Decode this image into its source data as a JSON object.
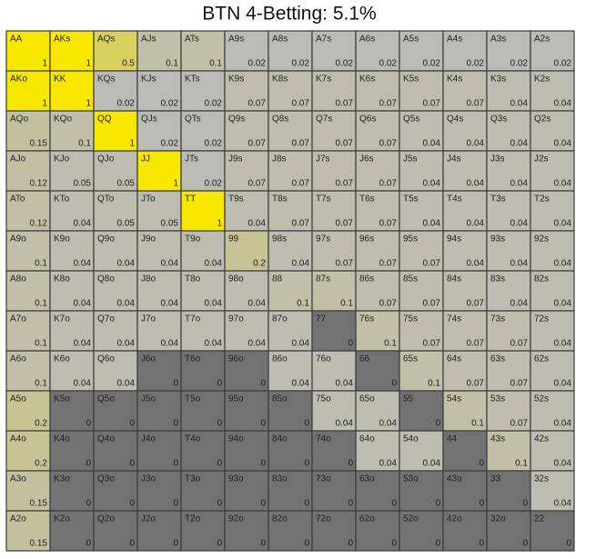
{
  "title": "BTN 4-Betting: 5.1%",
  "color_scale": {
    "zero": "#727272",
    "low": "#bababa",
    "full": "#f8e800",
    "border": "#3a3a3a"
  },
  "cells": [
    [
      [
        "AA",
        1
      ],
      [
        "AKs",
        1
      ],
      [
        "AQs",
        0.5
      ],
      [
        "AJs",
        0.1
      ],
      [
        "ATs",
        0.1
      ],
      [
        "A9s",
        0.02
      ],
      [
        "A8s",
        0.02
      ],
      [
        "A7s",
        0.02
      ],
      [
        "A6s",
        0.02
      ],
      [
        "A5s",
        0.02
      ],
      [
        "A4s",
        0.02
      ],
      [
        "A3s",
        0.02
      ],
      [
        "A2s",
        0.02
      ]
    ],
    [
      [
        "AKo",
        1
      ],
      [
        "KK",
        1
      ],
      [
        "KQs",
        0.02
      ],
      [
        "KJs",
        0.02
      ],
      [
        "KTs",
        0.02
      ],
      [
        "K9s",
        0.07
      ],
      [
        "K8s",
        0.07
      ],
      [
        "K7s",
        0.07
      ],
      [
        "K6s",
        0.07
      ],
      [
        "K5s",
        0.07
      ],
      [
        "K4s",
        0.07
      ],
      [
        "K3s",
        0.04
      ],
      [
        "K2s",
        0.04
      ]
    ],
    [
      [
        "AQo",
        0.15
      ],
      [
        "KQo",
        0.1
      ],
      [
        "QQ",
        1
      ],
      [
        "QJs",
        0.02
      ],
      [
        "QTs",
        0.02
      ],
      [
        "Q9s",
        0.07
      ],
      [
        "Q8s",
        0.07
      ],
      [
        "Q7s",
        0.07
      ],
      [
        "Q6s",
        0.07
      ],
      [
        "Q5s",
        0.04
      ],
      [
        "Q4s",
        0.04
      ],
      [
        "Q3s",
        0.04
      ],
      [
        "Q2s",
        0.04
      ]
    ],
    [
      [
        "AJo",
        0.12
      ],
      [
        "KJo",
        0.05
      ],
      [
        "QJo",
        0.05
      ],
      [
        "JJ",
        1
      ],
      [
        "JTs",
        0.02
      ],
      [
        "J9s",
        0.07
      ],
      [
        "J8s",
        0.07
      ],
      [
        "J7s",
        0.07
      ],
      [
        "J6s",
        0.07
      ],
      [
        "J5s",
        0.04
      ],
      [
        "J4s",
        0.04
      ],
      [
        "J3s",
        0.04
      ],
      [
        "J2s",
        0.04
      ]
    ],
    [
      [
        "ATo",
        0.12
      ],
      [
        "KTo",
        0.04
      ],
      [
        "QTo",
        0.05
      ],
      [
        "JTo",
        0.05
      ],
      [
        "TT",
        1
      ],
      [
        "T9s",
        0.04
      ],
      [
        "T8s",
        0.07
      ],
      [
        "T7s",
        0.07
      ],
      [
        "T6s",
        0.07
      ],
      [
        "T5s",
        0.04
      ],
      [
        "T4s",
        0.04
      ],
      [
        "T3s",
        0.04
      ],
      [
        "T2s",
        0.04
      ]
    ],
    [
      [
        "A9o",
        0.1
      ],
      [
        "K9o",
        0.04
      ],
      [
        "Q9o",
        0.04
      ],
      [
        "J9o",
        0.04
      ],
      [
        "T9o",
        0.04
      ],
      [
        "99",
        0.2
      ],
      [
        "98s",
        0.04
      ],
      [
        "97s",
        0.07
      ],
      [
        "96s",
        0.07
      ],
      [
        "95s",
        0.07
      ],
      [
        "94s",
        0.04
      ],
      [
        "93s",
        0.04
      ],
      [
        "92s",
        0.04
      ]
    ],
    [
      [
        "A8o",
        0.1
      ],
      [
        "K8o",
        0.04
      ],
      [
        "Q8o",
        0.04
      ],
      [
        "J8o",
        0.04
      ],
      [
        "T8o",
        0.04
      ],
      [
        "98o",
        0.04
      ],
      [
        "88",
        0.1
      ],
      [
        "87s",
        0.1
      ],
      [
        "86s",
        0.07
      ],
      [
        "85s",
        0.07
      ],
      [
        "84s",
        0.07
      ],
      [
        "83s",
        0.04
      ],
      [
        "82s",
        0.04
      ]
    ],
    [
      [
        "A7o",
        0.1
      ],
      [
        "K7o",
        0.04
      ],
      [
        "Q7o",
        0.04
      ],
      [
        "J7o",
        0.04
      ],
      [
        "T7o",
        0.04
      ],
      [
        "97o",
        0.04
      ],
      [
        "87o",
        0.04
      ],
      [
        "77",
        0
      ],
      [
        "76s",
        0.1
      ],
      [
        "75s",
        0.07
      ],
      [
        "74s",
        0.07
      ],
      [
        "73s",
        0.07
      ],
      [
        "72s",
        0.04
      ]
    ],
    [
      [
        "A6o",
        0.1
      ],
      [
        "K6o",
        0.04
      ],
      [
        "Q6o",
        0.04
      ],
      [
        "J6o",
        0
      ],
      [
        "T6o",
        0
      ],
      [
        "96o",
        0
      ],
      [
        "86o",
        0.04
      ],
      [
        "76o",
        0.04
      ],
      [
        "66",
        0
      ],
      [
        "65s",
        0.1
      ],
      [
        "64s",
        0.07
      ],
      [
        "63s",
        0.07
      ],
      [
        "62s",
        0.04
      ]
    ],
    [
      [
        "A5o",
        0.2
      ],
      [
        "K5o",
        0
      ],
      [
        "Q5o",
        0
      ],
      [
        "J5o",
        0
      ],
      [
        "T5o",
        0
      ],
      [
        "95o",
        0
      ],
      [
        "85o",
        0
      ],
      [
        "75o",
        0.04
      ],
      [
        "65o",
        0.04
      ],
      [
        "55",
        0
      ],
      [
        "54s",
        0.1
      ],
      [
        "53s",
        0.07
      ],
      [
        "52s",
        0.04
      ]
    ],
    [
      [
        "A4o",
        0.2
      ],
      [
        "K4o",
        0
      ],
      [
        "Q4o",
        0
      ],
      [
        "J4o",
        0
      ],
      [
        "T4o",
        0
      ],
      [
        "94o",
        0
      ],
      [
        "84o",
        0
      ],
      [
        "74o",
        0
      ],
      [
        "64o",
        0.04
      ],
      [
        "54o",
        0.04
      ],
      [
        "44",
        0
      ],
      [
        "43s",
        0.1
      ],
      [
        "42s",
        0.04
      ]
    ],
    [
      [
        "A3o",
        0.15
      ],
      [
        "K3o",
        0
      ],
      [
        "Q3o",
        0
      ],
      [
        "J3o",
        0
      ],
      [
        "T3o",
        0
      ],
      [
        "93o",
        0
      ],
      [
        "83o",
        0
      ],
      [
        "73o",
        0
      ],
      [
        "63o",
        0
      ],
      [
        "53o",
        0
      ],
      [
        "43o",
        0
      ],
      [
        "33",
        0
      ],
      [
        "32s",
        0.04
      ]
    ],
    [
      [
        "A2o",
        0.15
      ],
      [
        "K2o",
        0
      ],
      [
        "Q2o",
        0
      ],
      [
        "J2o",
        0
      ],
      [
        "T2o",
        0
      ],
      [
        "92o",
        0
      ],
      [
        "82o",
        0
      ],
      [
        "72o",
        0
      ],
      [
        "62o",
        0
      ],
      [
        "52o",
        0
      ],
      [
        "42o",
        0
      ],
      [
        "32o",
        0
      ],
      [
        "22",
        0
      ]
    ]
  ]
}
